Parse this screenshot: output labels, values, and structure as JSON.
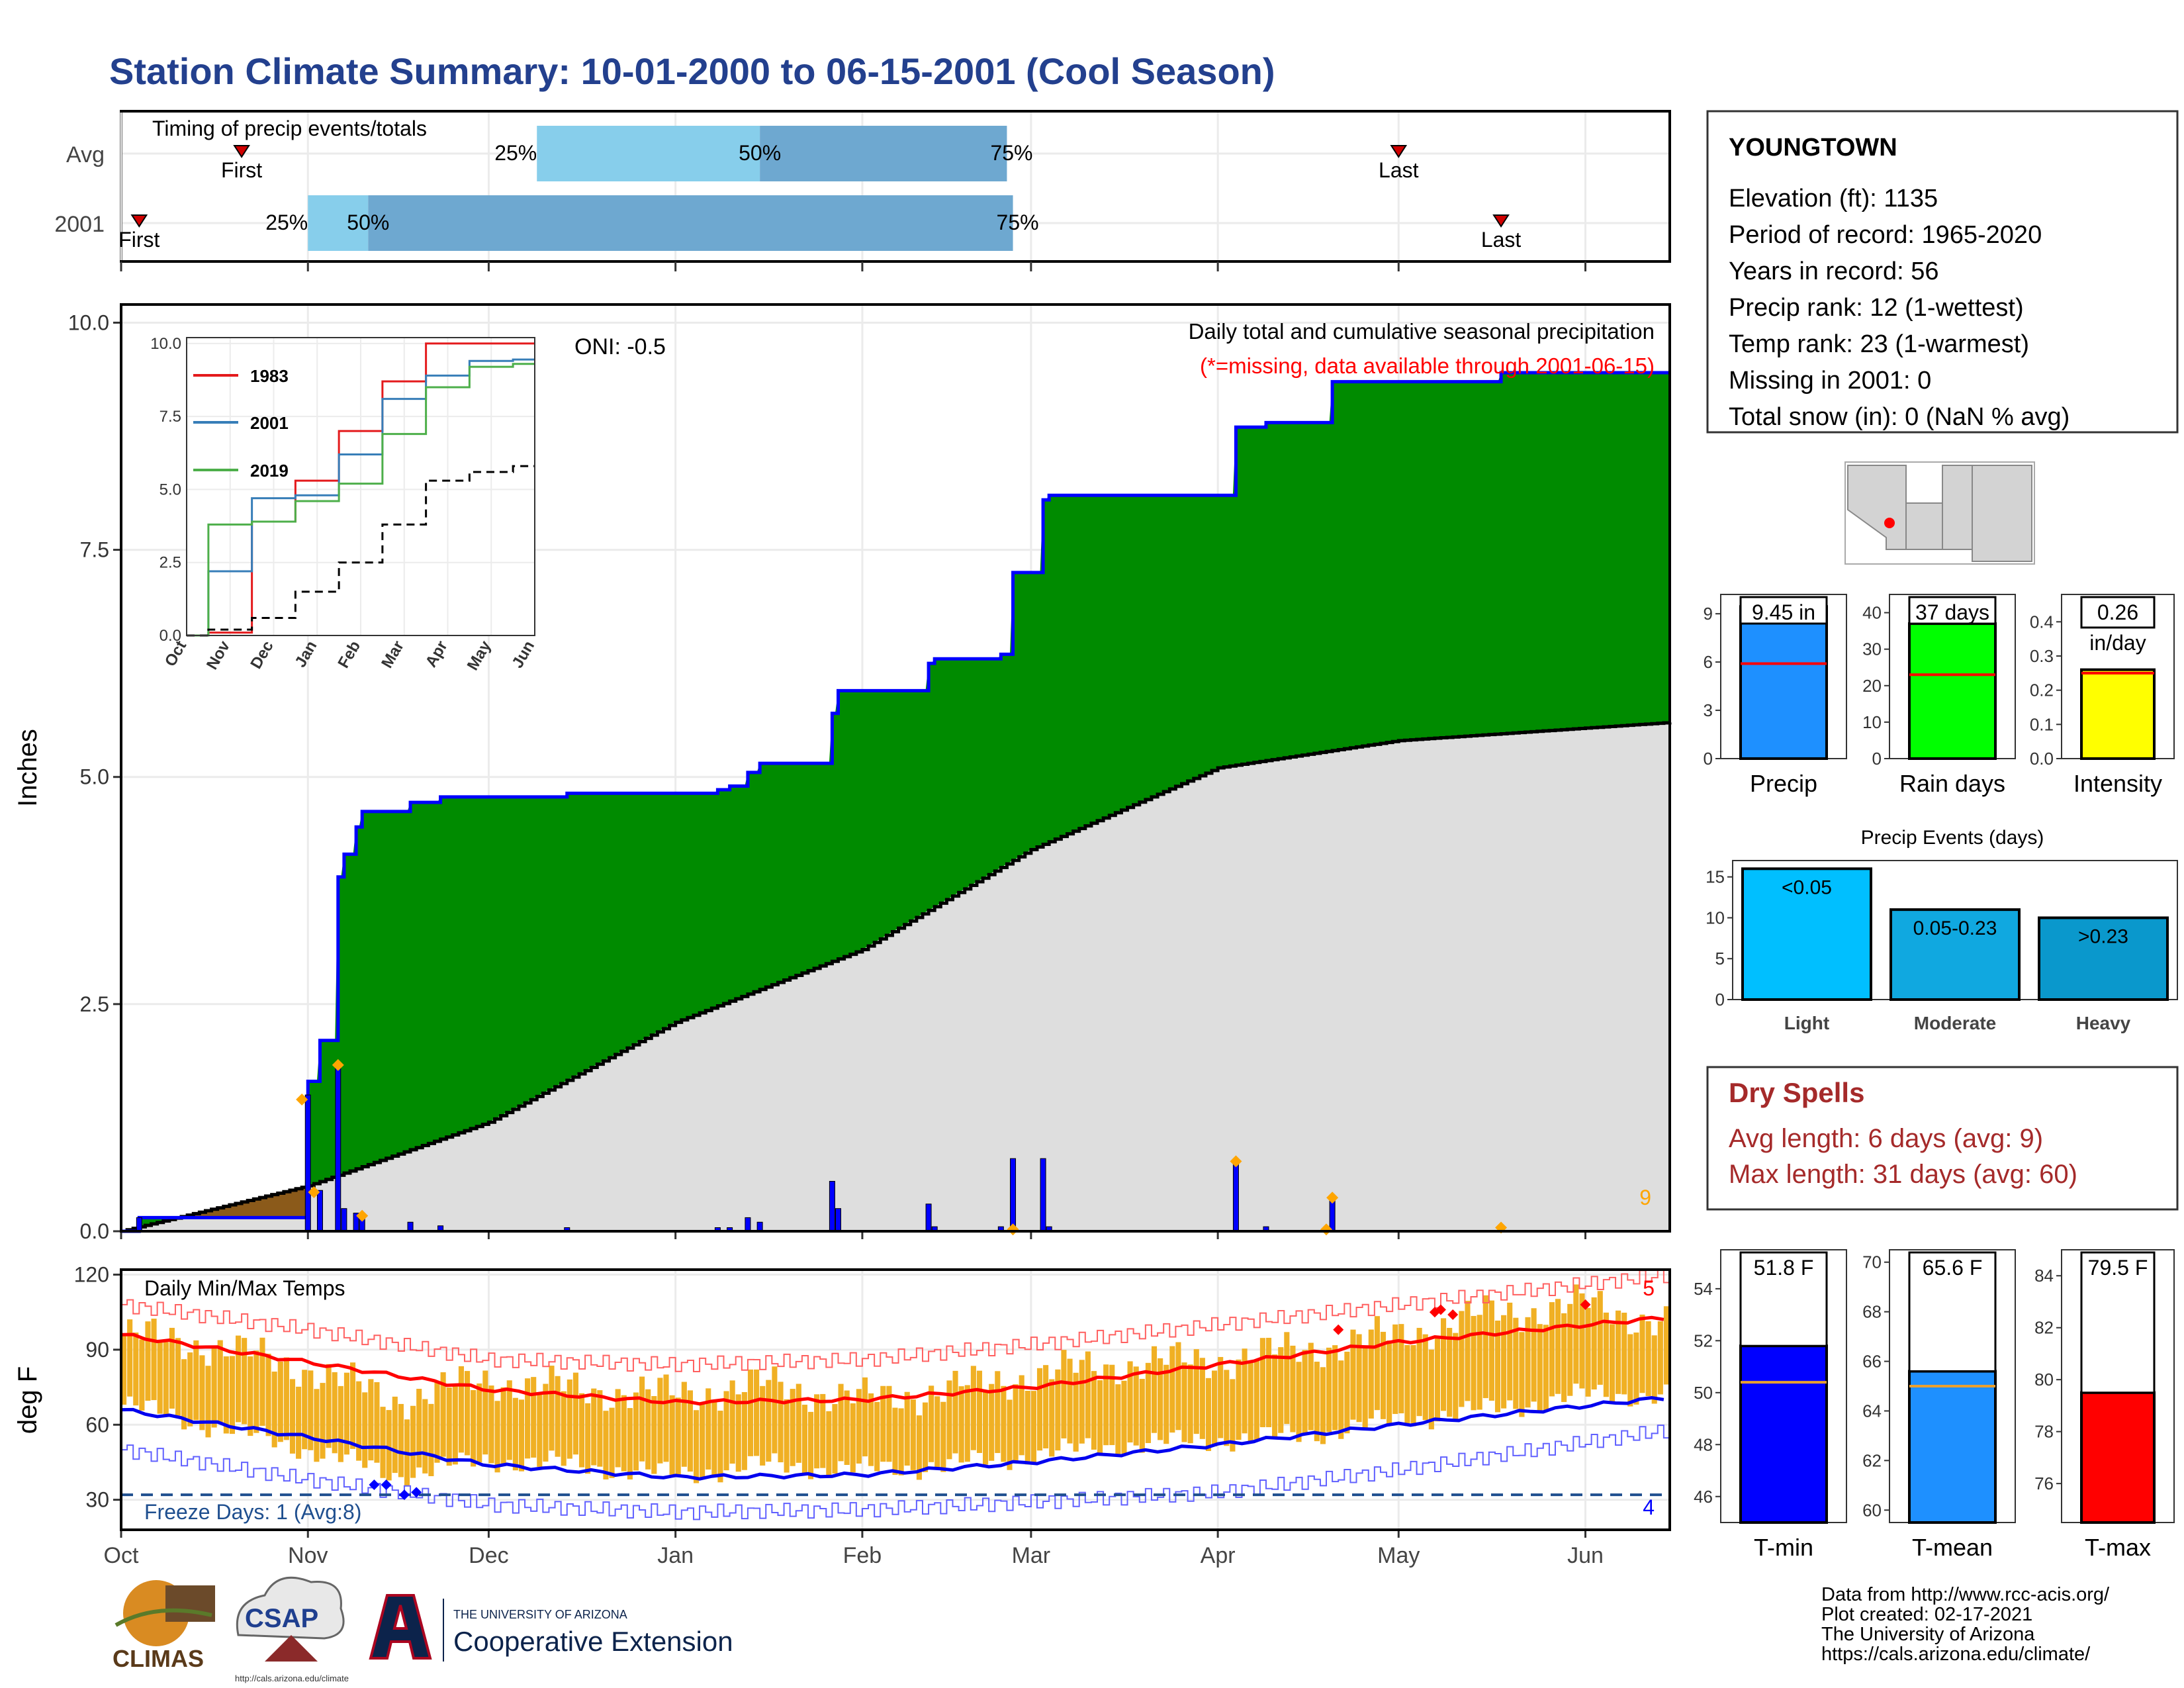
{
  "title": "Station Climate Summary: 10-01-2000 to 06-15-2001 (Cool Season)",
  "months": [
    "Oct",
    "Nov",
    "Dec",
    "Jan",
    "Feb",
    "Mar",
    "Apr",
    "May",
    "Jun"
  ],
  "colors": {
    "title": "#23408e",
    "precip_green": "#008b00",
    "climo_gray": "#dedede",
    "cum_blue": "#0000ff",
    "temp_bar": "#f0b024",
    "tmax_line": "#ff0000",
    "tmin_line": "#0000ee",
    "dry_red": "#a52a2a",
    "bar_light_blue": "#87ceeb",
    "bar_mid_blue": "#6ea8d0",
    "brown": "#8b5a1a",
    "orange_marker": "#ffa500"
  },
  "timing": {
    "title": "Timing of precip events/totals",
    "rows": [
      {
        "label": "Avg",
        "first_label": "First",
        "first_date": "2000-10-21",
        "last_label": "Last",
        "last_date": "2001-05-01",
        "p25_label": "25%",
        "p25_date": "2000-12-09",
        "p50_label": "50%",
        "p50_date": "2001-01-15",
        "p75_label": "75%",
        "p75_date": "2001-02-25"
      },
      {
        "label": "2001",
        "first_label": "First",
        "first_date": "2000-10-04",
        "last_label": "Last",
        "last_date": "2001-05-18",
        "p25_label": "25%",
        "p25_date": "2000-11-01",
        "p50_label": "50%",
        "p50_date": "2000-11-11",
        "p75_label": "75%",
        "p75_date": "2001-02-26"
      }
    ]
  },
  "precip_panel": {
    "ylabel": "Inches",
    "y_ticks": [
      "0.0",
      "2.5",
      "5.0",
      "7.5",
      "10.0"
    ],
    "oni": "ONI: -0.5",
    "legend_title": "Daily total and cumulative seasonal precipitation",
    "missing_note": "(*=missing, data available through 2001-06-15)",
    "corner_count": "9"
  },
  "inset": {
    "y_ticks": [
      "0.0",
      "2.5",
      "5.0",
      "7.5",
      "10.0"
    ],
    "months": [
      "Oct",
      "Nov",
      "Dec",
      "Jan",
      "Feb",
      "Mar",
      "Apr",
      "May",
      "Jun"
    ],
    "series": [
      {
        "name": "1983",
        "color": "#e41a1c"
      },
      {
        "name": "2001",
        "color": "#377eb8"
      },
      {
        "name": "2019",
        "color": "#4daf4a"
      }
    ]
  },
  "temp_panel": {
    "ylabel": "deg F",
    "title": "Daily Min/Max Temps",
    "y_ticks": [
      "30",
      "60",
      "90",
      "120"
    ],
    "freeze_label": "Freeze Days: 1 (Avg:8)",
    "count_top": "5",
    "count_bottom": "4"
  },
  "station": {
    "name": "YOUNGTOWN",
    "lines": [
      "Elevation (ft): 1135",
      "Period of record: 1965-2020",
      "Years in record: 56",
      "Precip rank: 12 (1-wettest)",
      "Temp rank: 23 (1-warmest)",
      "Missing in 2001: 0",
      "Total snow (in): 0 (NaN % avg)"
    ]
  },
  "summary_bars": [
    {
      "label": "Precip",
      "value_label": "9.45 in",
      "ticks": [
        "0",
        "3",
        "6",
        "9"
      ],
      "color": "#1e90ff"
    },
    {
      "label": "Rain days",
      "value_label": "37 days",
      "ticks": [
        "0",
        "10",
        "20",
        "30",
        "40"
      ],
      "color": "#00ff00"
    },
    {
      "label": "Intensity",
      "value_label": "0.26",
      "value_label2": "in/day",
      "ticks": [
        "0.0",
        "0.1",
        "0.2",
        "0.3",
        "0.4"
      ],
      "color": "#ffff00"
    }
  ],
  "precip_events": {
    "title": "Precip Events (days)",
    "ticks": [
      "0",
      "5",
      "10",
      "15"
    ],
    "bars": [
      {
        "category": "Light",
        "label": "<0.05",
        "color": "#00bfff"
      },
      {
        "category": "Moderate",
        "label": "0.05-0.23",
        "color": "#10a8e0"
      },
      {
        "category": "Heavy",
        "label": ">0.23",
        "color": "#0a98cc"
      }
    ]
  },
  "dry_spells": {
    "title": "Dry Spells",
    "avg": "Avg length: 6 days (avg: 9)",
    "max": "Max length: 31 days (avg: 60)"
  },
  "temp_bars": [
    {
      "label": "T-min",
      "value_label": "51.8 F",
      "ticks": [
        "46",
        "48",
        "50",
        "52",
        "54"
      ],
      "color": "#0000ff"
    },
    {
      "label": "T-mean",
      "value_label": "65.6 F",
      "ticks": [
        "60",
        "62",
        "64",
        "66",
        "68",
        "70"
      ],
      "color": "#1e90ff"
    },
    {
      "label": "T-max",
      "value_label": "79.5 F",
      "ticks": [
        "76",
        "78",
        "80",
        "82",
        "84"
      ],
      "color": "#ff0000"
    }
  ],
  "logos": {
    "climas": "CLIMAS",
    "csap": "CSAP",
    "csap_url": "http://cals.arizona.edu/climate",
    "ua_small": "THE UNIVERSITY OF ARIZONA",
    "ua_big": "Cooperative Extension"
  },
  "footer": [
    "Data from http://www.rcc-acis.org/",
    "Plot created: 02-17-2021",
    "The University of Arizona",
    "https://cals.arizona.edu/climate/"
  ],
  "chart_data": [
    {
      "type": "area",
      "name": "cumulative_precip",
      "x_start": "2000-10-01",
      "x_end": "2001-06-15",
      "ylim": [
        0,
        10.2
      ],
      "y_ticks": [
        0,
        2.5,
        5.0,
        7.5,
        10.0
      ],
      "cumulative_steps": [
        [
          "2000-10-01",
          0.0
        ],
        [
          "2000-10-04",
          0.15
        ],
        [
          "2000-11-01",
          1.65
        ],
        [
          "2000-11-03",
          2.1
        ],
        [
          "2000-11-06",
          3.9
        ],
        [
          "2000-11-07",
          4.15
        ],
        [
          "2000-11-09",
          4.45
        ],
        [
          "2000-11-10",
          4.62
        ],
        [
          "2000-11-18",
          4.72
        ],
        [
          "2000-11-23",
          4.78
        ],
        [
          "2000-12-14",
          4.82
        ],
        [
          "2001-01-08",
          4.86
        ],
        [
          "2001-01-10",
          4.9
        ],
        [
          "2001-01-13",
          5.05
        ],
        [
          "2001-01-15",
          5.15
        ],
        [
          "2001-01-27",
          5.7
        ],
        [
          "2001-01-28",
          5.95
        ],
        [
          "2001-02-12",
          6.25
        ],
        [
          "2001-02-13",
          6.3
        ],
        [
          "2001-02-24",
          6.35
        ],
        [
          "2001-02-26",
          7.25
        ],
        [
          "2001-03-03",
          8.05
        ],
        [
          "2001-03-04",
          8.1
        ],
        [
          "2001-04-04",
          8.85
        ],
        [
          "2001-04-09",
          8.9
        ],
        [
          "2001-04-20",
          9.35
        ],
        [
          "2001-05-18",
          9.45
        ],
        [
          "2001-06-15",
          9.45
        ]
      ],
      "climo_avg": [
        [
          "2000-10-01",
          0.0
        ],
        [
          "2000-11-01",
          0.5
        ],
        [
          "2000-12-01",
          1.2
        ],
        [
          "2001-01-01",
          2.3
        ],
        [
          "2001-02-01",
          3.1
        ],
        [
          "2001-03-01",
          4.2
        ],
        [
          "2001-04-01",
          5.1
        ],
        [
          "2001-05-01",
          5.4
        ],
        [
          "2001-06-15",
          5.6
        ]
      ],
      "daily_bars": [
        [
          "2000-10-04",
          0.15
        ],
        [
          "2000-11-01",
          1.5
        ],
        [
          "2000-11-03",
          0.45
        ],
        [
          "2000-11-06",
          1.8
        ],
        [
          "2000-11-07",
          0.25
        ],
        [
          "2000-11-09",
          0.2
        ],
        [
          "2000-11-10",
          0.17
        ],
        [
          "2000-11-18",
          0.1
        ],
        [
          "2000-11-23",
          0.06
        ],
        [
          "2000-12-14",
          0.04
        ],
        [
          "2001-01-08",
          0.04
        ],
        [
          "2001-01-10",
          0.04
        ],
        [
          "2001-01-13",
          0.15
        ],
        [
          "2001-01-15",
          0.1
        ],
        [
          "2001-01-27",
          0.55
        ],
        [
          "2001-01-28",
          0.25
        ],
        [
          "2001-02-12",
          0.3
        ],
        [
          "2001-02-13",
          0.05
        ],
        [
          "2001-02-24",
          0.05
        ],
        [
          "2001-02-26",
          0.8
        ],
        [
          "2001-03-03",
          0.8
        ],
        [
          "2001-03-04",
          0.05
        ],
        [
          "2001-04-04",
          0.75
        ],
        [
          "2001-04-09",
          0.05
        ],
        [
          "2001-04-20",
          0.35
        ],
        [
          "2001-05-18",
          0.04
        ]
      ],
      "orange_markers": [
        [
          "2000-10-31",
          1.45
        ],
        [
          "2000-11-02",
          0.43
        ],
        [
          "2000-11-06",
          1.83
        ],
        [
          "2000-11-10",
          0.17
        ],
        [
          "2001-02-26",
          0.02
        ],
        [
          "2001-04-04",
          0.77
        ],
        [
          "2001-04-19",
          0.02
        ],
        [
          "2001-04-20",
          0.37
        ],
        [
          "2001-05-18",
          0.04
        ]
      ]
    },
    {
      "type": "line",
      "name": "inset_cumulative",
      "x": [
        "Oct",
        "Nov",
        "Dec",
        "Jan",
        "Feb",
        "Mar",
        "Apr",
        "May",
        "Jun"
      ],
      "ylim": [
        0,
        10.2
      ],
      "series": [
        {
          "name": "1983",
          "values": [
            0,
            0.1,
            3.9,
            5.3,
            7.0,
            8.7,
            10.0,
            10.0,
            10.0
          ]
        },
        {
          "name": "2001",
          "values": [
            0,
            2.2,
            4.7,
            4.8,
            6.2,
            8.1,
            8.9,
            9.4,
            9.45
          ]
        },
        {
          "name": "2019",
          "values": [
            0,
            3.8,
            3.9,
            4.6,
            5.2,
            6.9,
            8.5,
            9.2,
            9.3
          ]
        },
        {
          "values": [
            0,
            0.2,
            0.6,
            1.5,
            2.5,
            3.8,
            5.3,
            5.6,
            5.8
          ]
        }
      ]
    },
    {
      "type": "line",
      "name": "daily_temps",
      "ylim": [
        18,
        122
      ],
      "y_ticks": [
        30,
        60,
        90,
        120
      ],
      "freeze_line": 32,
      "tmax_avg": [
        [
          "2000-10-01",
          96
        ],
        [
          "2000-11-01",
          85
        ],
        [
          "2000-12-01",
          74
        ],
        [
          "2001-01-01",
          69
        ],
        [
          "2001-02-01",
          70
        ],
        [
          "2001-03-01",
          75
        ],
        [
          "2001-04-01",
          84
        ],
        [
          "2001-05-01",
          93
        ],
        [
          "2001-06-15",
          103
        ]
      ],
      "tmin_avg": [
        [
          "2000-10-01",
          66
        ],
        [
          "2000-11-01",
          55
        ],
        [
          "2000-12-01",
          44
        ],
        [
          "2001-01-01",
          39
        ],
        [
          "2001-02-01",
          40
        ],
        [
          "2001-03-01",
          45
        ],
        [
          "2001-04-01",
          52
        ],
        [
          "2001-05-01",
          60
        ],
        [
          "2001-06-15",
          71
        ]
      ],
      "tmax_record": [
        [
          "2000-10-01",
          108
        ],
        [
          "2000-11-01",
          98
        ],
        [
          "2000-12-01",
          86
        ],
        [
          "2001-01-01",
          84
        ],
        [
          "2001-02-01",
          86
        ],
        [
          "2001-03-01",
          92
        ],
        [
          "2001-04-01",
          100
        ],
        [
          "2001-05-01",
          108
        ],
        [
          "2001-06-15",
          120
        ]
      ],
      "tmin_record": [
        [
          "2000-10-01",
          50
        ],
        [
          "2000-11-01",
          38
        ],
        [
          "2000-12-01",
          28
        ],
        [
          "2001-01-01",
          25
        ],
        [
          "2001-02-01",
          26
        ],
        [
          "2001-03-01",
          29
        ],
        [
          "2001-04-01",
          33
        ],
        [
          "2001-05-01",
          42
        ],
        [
          "2001-06-15",
          58
        ]
      ],
      "daily_max_approx": [
        [
          "2000-10-01",
          96
        ],
        [
          "2000-10-15",
          92
        ],
        [
          "2000-11-01",
          82
        ],
        [
          "2000-11-15",
          70
        ],
        [
          "2000-12-01",
          78
        ],
        [
          "2000-12-15",
          74
        ],
        [
          "2001-01-01",
          72
        ],
        [
          "2001-01-15",
          76
        ],
        [
          "2001-02-01",
          70
        ],
        [
          "2001-02-15",
          74
        ],
        [
          "2001-03-01",
          80
        ],
        [
          "2001-03-15",
          84
        ],
        [
          "2001-04-01",
          86
        ],
        [
          "2001-04-15",
          90
        ],
        [
          "2001-05-01",
          96
        ],
        [
          "2001-05-15",
          104
        ],
        [
          "2001-06-01",
          108
        ],
        [
          "2001-06-15",
          100
        ]
      ],
      "daily_min_approx": [
        [
          "2000-10-01",
          68
        ],
        [
          "2000-10-15",
          60
        ],
        [
          "2000-11-01",
          50
        ],
        [
          "2000-11-15",
          40
        ],
        [
          "2000-12-01",
          46
        ],
        [
          "2000-12-15",
          44
        ],
        [
          "2001-01-01",
          40
        ],
        [
          "2001-01-15",
          44
        ],
        [
          "2001-02-01",
          42
        ],
        [
          "2001-02-15",
          44
        ],
        [
          "2001-03-01",
          48
        ],
        [
          "2001-03-15",
          52
        ],
        [
          "2001-04-01",
          54
        ],
        [
          "2001-04-15",
          56
        ],
        [
          "2001-05-01",
          62
        ],
        [
          "2001-05-15",
          66
        ],
        [
          "2001-06-01",
          72
        ],
        [
          "2001-06-15",
          72
        ]
      ]
    },
    {
      "type": "bar",
      "name": "Precip",
      "values": [
        9.45
      ],
      "avg": 5.9,
      "ylim": [
        0,
        10.2
      ]
    },
    {
      "type": "bar",
      "name": "Rain days",
      "values": [
        37
      ],
      "avg": 23,
      "ylim": [
        0,
        45
      ]
    },
    {
      "type": "bar",
      "name": "Intensity",
      "values": [
        0.26
      ],
      "avg": 0.25,
      "ylim": [
        0,
        0.48
      ]
    },
    {
      "type": "bar",
      "name": "precip_events",
      "categories": [
        "Light",
        "Moderate",
        "Heavy"
      ],
      "values": [
        16,
        11,
        10
      ],
      "ylim": [
        0,
        17
      ]
    },
    {
      "type": "bar",
      "name": "T-min",
      "values": [
        51.8
      ],
      "avg": 50.4,
      "ylim": [
        45,
        55.5
      ]
    },
    {
      "type": "bar",
      "name": "T-mean",
      "values": [
        65.6
      ],
      "avg": 65.0,
      "ylim": [
        59.5,
        70.5
      ]
    },
    {
      "type": "bar",
      "name": "T-max",
      "values": [
        79.5
      ],
      "avg": 79.7,
      "ylim": [
        74.5,
        85
      ]
    }
  ]
}
